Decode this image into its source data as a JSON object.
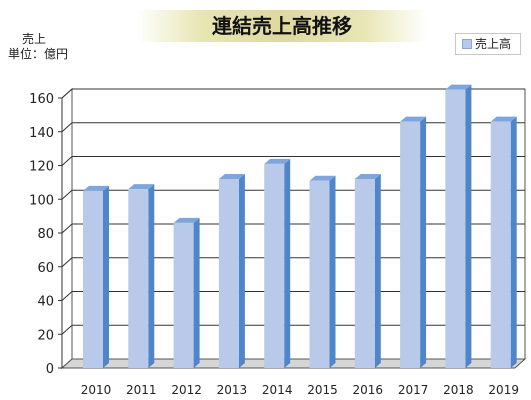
{
  "chart_data": {
    "type": "bar",
    "title": "連結売上高推移",
    "unit_label": [
      "売上",
      "単位：億円"
    ],
    "categories": [
      "2010",
      "2011",
      "2012",
      "2013",
      "2014",
      "2015",
      "2016",
      "2017",
      "2018",
      "2019"
    ],
    "series": [
      {
        "name": "売上高",
        "values": [
          105,
          106,
          86,
          112,
          121,
          111,
          112,
          146,
          165,
          146
        ],
        "color": "#b8c9ea",
        "side_color": "#4f86c9"
      }
    ],
    "y_ticks": [
      "0",
      "20",
      "40",
      "60",
      "80",
      "100",
      "120",
      "140",
      "160"
    ],
    "ylim": [
      0,
      160
    ],
    "grid": true,
    "legend_position": "top-right",
    "style": "3d-bar"
  }
}
